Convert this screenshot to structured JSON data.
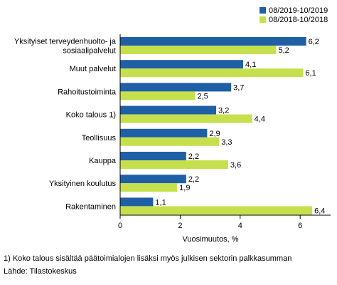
{
  "chart_data": {
    "type": "bar",
    "orientation": "horizontal",
    "categories": [
      [
        "Yksityiset terveydenhuolto- ja",
        "sosiaalipalvelut"
      ],
      [
        "Muut palvelut"
      ],
      [
        "Rahoitustoiminta"
      ],
      [
        "Koko talous 1)"
      ],
      [
        "Teollisuus"
      ],
      [
        "Kauppa"
      ],
      [
        "Yksityinen koulutus"
      ],
      [
        "Rakentaminen"
      ]
    ],
    "series": [
      {
        "name": "08/2019-10/2019",
        "color": "#1f5fa6",
        "values": [
          6.2,
          4.1,
          3.7,
          3.2,
          2.9,
          2.2,
          2.2,
          1.1
        ],
        "labels": [
          "6,2",
          "4,1",
          "3,7",
          "3,2",
          "2,9",
          "2,2",
          "2,2",
          "1,1"
        ]
      },
      {
        "name": "08/2018-10/2018",
        "color": "#c6e04d",
        "values": [
          5.2,
          6.1,
          2.5,
          4.4,
          3.3,
          3.6,
          1.9,
          6.4
        ],
        "labels": [
          "5,2",
          "6,1",
          "2,5",
          "4,4",
          "3,3",
          "3,6",
          "1,9",
          "6,4"
        ]
      }
    ],
    "xlabel": "Vuosimuutos, %",
    "xlim": [
      0,
      6.5
    ],
    "xticks": [
      0,
      2,
      4,
      6
    ],
    "xtick_labels": [
      "0",
      "2",
      "4",
      "6"
    ],
    "grid": false,
    "legend_position": "top-right"
  },
  "footnote": "1) Koko talous sisältää päätoimialojen lisäksi myös julkisen sektorin palkkasumman",
  "source": "Lähde: Tilastokeskus"
}
